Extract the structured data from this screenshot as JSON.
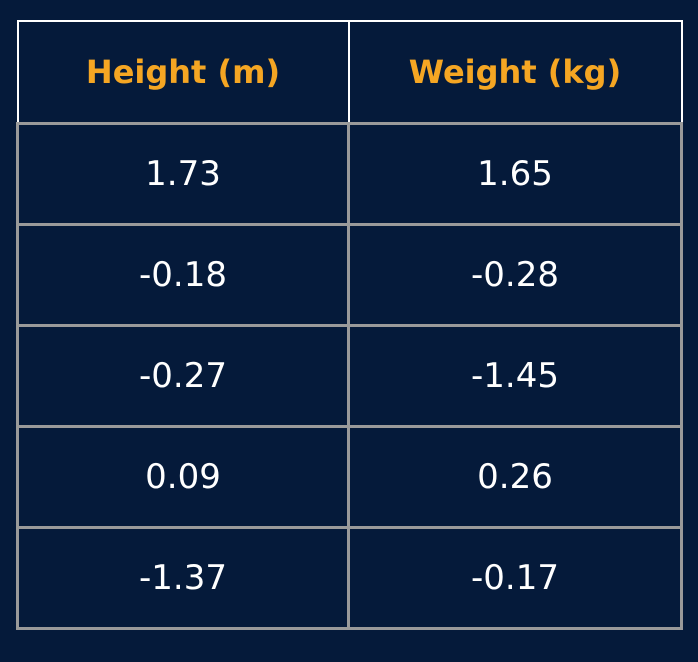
{
  "colors": {
    "background": "#051a3a",
    "header_text": "#f5a623",
    "cell_text": "#ffffff",
    "grid_lines": "#9a9a9a",
    "header_border": "#ffffff"
  },
  "chart_data": {
    "type": "table",
    "columns": [
      "Height (m)",
      "Weight (kg)"
    ],
    "rows": [
      [
        "1.73",
        "1.65"
      ],
      [
        "-0.18",
        "-0.28"
      ],
      [
        "-0.27",
        "-1.45"
      ],
      [
        "0.09",
        "0.26"
      ],
      [
        "-1.37",
        "-0.17"
      ]
    ]
  }
}
